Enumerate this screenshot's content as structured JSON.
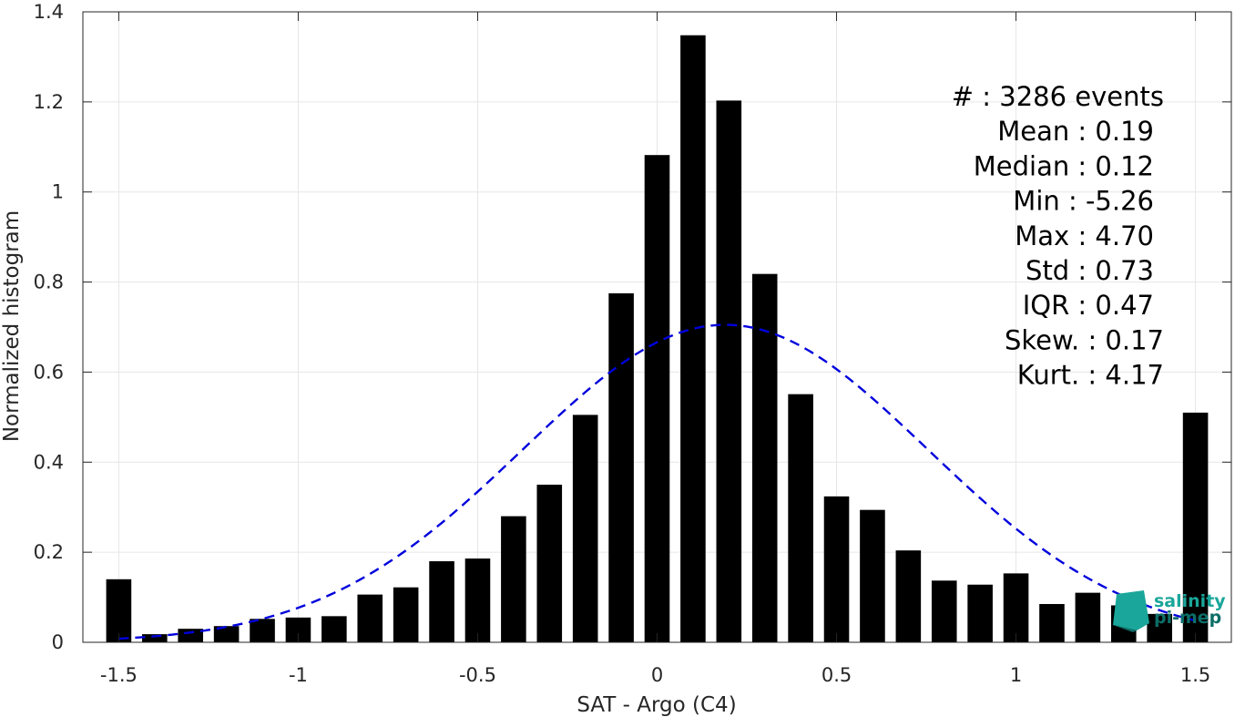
{
  "chart_data": {
    "type": "bar",
    "title": "",
    "xlabel": "SAT - Argo (C4)",
    "ylabel": "Normalized histogram",
    "xlim": [
      -1.6,
      1.6
    ],
    "ylim": [
      0,
      1.4
    ],
    "xticks": [
      -1.5,
      -1,
      -0.5,
      0,
      0.5,
      1,
      1.5
    ],
    "xtick_labels": [
      "-1.5",
      "-1",
      "-0.5",
      "0",
      "0.5",
      "1",
      "1.5"
    ],
    "yticks": [
      0,
      0.2,
      0.4,
      0.6,
      0.8,
      1,
      1.2,
      1.4
    ],
    "ytick_labels": [
      "0",
      "0.2",
      "0.4",
      "0.6",
      "0.8",
      "1",
      "1.2",
      "1.4"
    ],
    "grid": true,
    "bar_color": "#000000",
    "bar_width": 0.07,
    "x": [
      -1.5,
      -1.4,
      -1.3,
      -1.2,
      -1.1,
      -1.0,
      -0.9,
      -0.8,
      -0.7,
      -0.6,
      -0.5,
      -0.4,
      -0.3,
      -0.2,
      -0.1,
      0.0,
      0.1,
      0.2,
      0.3,
      0.4,
      0.5,
      0.6,
      0.7,
      0.8,
      0.9,
      1.0,
      1.1,
      1.2,
      1.3,
      1.4,
      1.5
    ],
    "values": [
      0.14,
      0.018,
      0.03,
      0.036,
      0.052,
      0.055,
      0.058,
      0.106,
      0.122,
      0.18,
      0.186,
      0.28,
      0.35,
      0.505,
      0.775,
      1.082,
      1.348,
      1.203,
      0.818,
      0.551,
      0.324,
      0.294,
      0.204,
      0.137,
      0.128,
      0.153,
      0.085,
      0.11,
      0.082,
      0.063,
      0.51
    ],
    "gaussian_fit": {
      "mean": 0.19,
      "std": 0.565,
      "peak": 0.705,
      "color": "#0000dd",
      "style": "dashed",
      "x_range": [
        -1.5,
        1.5
      ]
    },
    "stats": [
      {
        "label": "#  : 3286 events"
      },
      {
        "label": "Mean : 0.19"
      },
      {
        "label": "Median : 0.12"
      },
      {
        "label": "Min : -5.26"
      },
      {
        "label": "Max : 4.70"
      },
      {
        "label": "Std : 0.73"
      },
      {
        "label": "IQR : 0.47"
      },
      {
        "label": "Skew. : 0.17"
      },
      {
        "label": "Kurt. : 4.17"
      }
    ]
  },
  "logo": {
    "line1": "salinity",
    "line2": "pi-mep",
    "color_primary": "#1aa69a",
    "color_secondary": "#0d6e68"
  }
}
